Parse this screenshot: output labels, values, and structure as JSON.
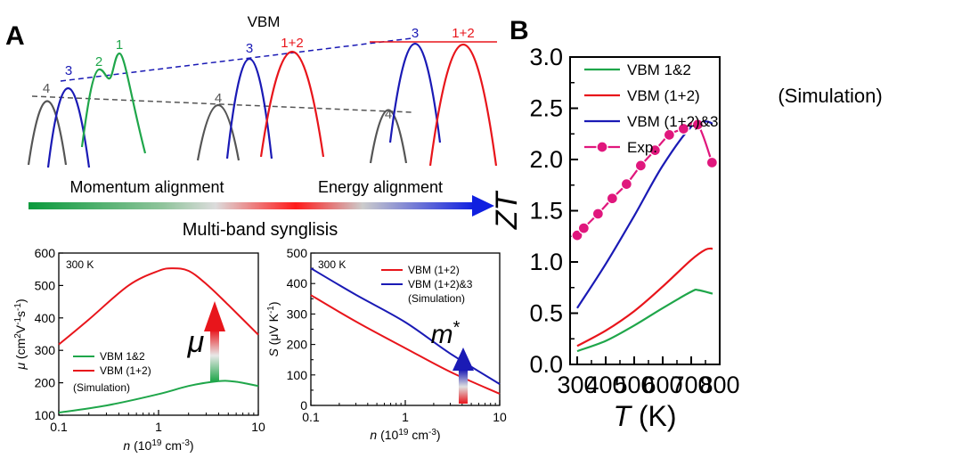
{
  "panel_a": {
    "letter": "A",
    "vbm_label": "VBM",
    "band_labels": [
      "4",
      "3",
      "2",
      "1",
      "4",
      "3",
      "1+2",
      "4",
      "3",
      "1+2"
    ],
    "arrow_left_label": "Momentum alignment",
    "arrow_right_label": "Energy alignment",
    "arrow_caption": "Multi-band synglisis",
    "colors": {
      "green": "#1fa64a",
      "red": "#e8151b",
      "blue": "#1a1ab5",
      "gray": "#555555",
      "arrow_start": "#0a9a3c",
      "arrow_end": "#1020e0"
    }
  },
  "panel_b": {
    "letter": "B"
  },
  "chart_data": [
    {
      "id": "mobility",
      "type": "line",
      "annotation": "300 K",
      "xscale": "log",
      "xlim": [
        0.1,
        10
      ],
      "ylim": [
        100,
        600
      ],
      "xticks": [
        0.1,
        1,
        10
      ],
      "xtick_labels": [
        "0.1",
        "1",
        "10"
      ],
      "yticks": [
        100,
        200,
        300,
        400,
        500,
        600
      ],
      "ytick_labels": [
        "100",
        "200",
        "300",
        "400",
        "500",
        "600"
      ],
      "xlabel": "n (10^19 cm^-3)",
      "ylabel": "μ (cm²V⁻¹s⁻¹)",
      "symbol": "μ",
      "legend": [
        "VBM 1&2",
        "VBM (1+2)",
        "(Simulation)"
      ],
      "series": [
        {
          "name": "VBM 1&2",
          "color": "#1fa64a",
          "x": [
            0.1,
            0.3,
            1,
            2,
            4,
            6,
            10
          ],
          "values": [
            108,
            130,
            165,
            190,
            205,
            203,
            190
          ]
        },
        {
          "name": "VBM (1+2)",
          "color": "#e8151b",
          "x": [
            0.1,
            0.2,
            0.5,
            1,
            1.4,
            2,
            3,
            5,
            10
          ],
          "values": [
            318,
            395,
            500,
            545,
            553,
            545,
            505,
            440,
            348
          ]
        }
      ]
    },
    {
      "id": "seebeck",
      "type": "line",
      "annotation": "300 K",
      "xscale": "log",
      "xlim": [
        0.1,
        10
      ],
      "ylim": [
        0,
        500
      ],
      "xticks": [
        0.1,
        1,
        10
      ],
      "xtick_labels": [
        "0.1",
        "1",
        "10"
      ],
      "yticks": [
        0,
        50,
        100,
        150,
        200,
        250,
        300,
        350,
        400,
        450,
        500
      ],
      "ytick_labels": [
        "0",
        "50",
        "100",
        "150",
        "200",
        "250",
        "300",
        "350",
        "400",
        "450",
        "500"
      ],
      "xlabel": "n (10^19 cm^-3)",
      "ylabel": "S (μV K^-1)",
      "symbol": "m",
      "symbol_sup": "*",
      "legend": [
        "VBM (1+2)",
        "VBM (1+2)&3",
        "(Simulation)"
      ],
      "series": [
        {
          "name": "VBM (1+2)",
          "color": "#e8151b",
          "x": [
            0.1,
            0.3,
            1,
            3,
            10
          ],
          "values": [
            362,
            275,
            188,
            110,
            38
          ]
        },
        {
          "name": "VBM (1+2)&3",
          "color": "#1a1ab5",
          "x": [
            0.1,
            0.3,
            1,
            3,
            10
          ],
          "values": [
            450,
            363,
            273,
            170,
            70
          ]
        }
      ]
    },
    {
      "id": "zt",
      "type": "line",
      "annotation": "(Simulation)",
      "xlim": [
        275,
        800
      ],
      "ylim": [
        0,
        3.0
      ],
      "xticks": [
        300,
        400,
        500,
        600,
        700,
        800
      ],
      "xtick_labels": [
        "300",
        "400",
        "500",
        "600",
        "700",
        "800"
      ],
      "yticks": [
        0.0,
        0.5,
        1.0,
        1.5,
        2.0,
        2.5,
        3.0
      ],
      "ytick_labels": [
        "0.0",
        "0.5",
        "1.0",
        "1.5",
        "2.0",
        "2.5",
        "3.0"
      ],
      "xlabel_italic": "T",
      "xlabel_rest": " (K)",
      "ylabel": "ZT",
      "legend": [
        "VBM 1&2",
        "VBM (1+2)",
        "VBM (1+2)&3",
        "Exp."
      ],
      "series": [
        {
          "name": "VBM 1&2",
          "color": "#1fa64a",
          "x": [
            300,
            400,
            500,
            600,
            700,
            725,
            775
          ],
          "values": [
            0.13,
            0.23,
            0.38,
            0.55,
            0.71,
            0.725,
            0.69
          ]
        },
        {
          "name": "VBM (1+2)",
          "color": "#e8151b",
          "x": [
            300,
            400,
            500,
            600,
            700,
            750,
            775
          ],
          "values": [
            0.18,
            0.33,
            0.52,
            0.76,
            1.02,
            1.12,
            1.13
          ]
        },
        {
          "name": "VBM (1+2)&3",
          "color": "#1a1ab5",
          "x": [
            300,
            400,
            500,
            600,
            700,
            750,
            775
          ],
          "values": [
            0.55,
            0.98,
            1.45,
            1.94,
            2.32,
            2.37,
            2.35
          ]
        },
        {
          "name": "Exp.",
          "color": "#e0177d",
          "marker": true,
          "x": [
            300,
            323,
            373,
            423,
            473,
            523,
            573,
            623,
            673,
            723,
            773
          ],
          "values": [
            1.26,
            1.33,
            1.47,
            1.62,
            1.76,
            1.94,
            2.09,
            2.24,
            2.3,
            2.34,
            1.97
          ]
        }
      ]
    }
  ]
}
